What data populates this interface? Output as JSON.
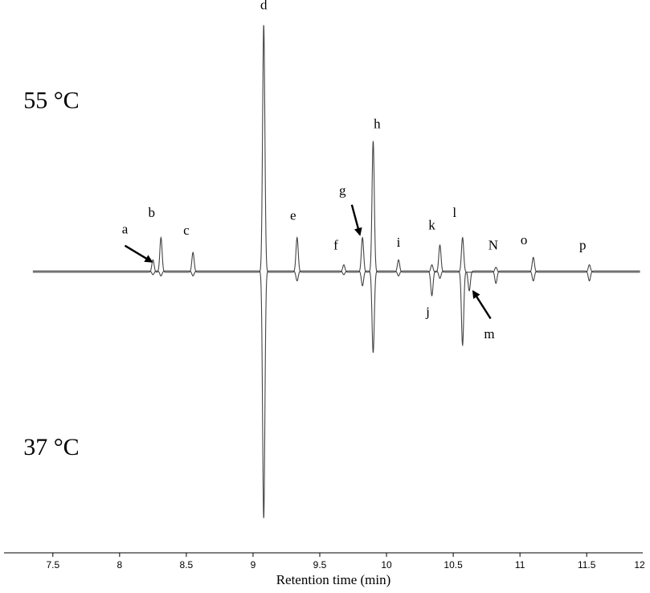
{
  "chart_data": {
    "type": "line",
    "xlabel": "Retention time (min)",
    "xlim": [
      7.3,
      12.0
    ],
    "xticks": [
      "7.5",
      "8",
      "8.5",
      "9",
      "9.5",
      "10",
      "10.5",
      "11",
      "11.5",
      "12"
    ],
    "xtick_values": [
      7.5,
      8,
      8.5,
      9,
      9.5,
      10,
      10.5,
      11,
      11.5,
      12
    ],
    "ylim": [
      -100,
      100
    ],
    "series": [
      {
        "name": "55 °C",
        "peaks": [
          {
            "x": 8.25,
            "h": 5
          },
          {
            "x": 8.31,
            "h": 14
          },
          {
            "x": 8.55,
            "h": 8
          },
          {
            "x": 9.08,
            "h": 100
          },
          {
            "x": 9.33,
            "h": 14
          },
          {
            "x": 9.68,
            "h": 3
          },
          {
            "x": 9.82,
            "h": 14
          },
          {
            "x": 9.9,
            "h": 53
          },
          {
            "x": 10.09,
            "h": 5
          },
          {
            "x": 10.34,
            "h": 3
          },
          {
            "x": 10.4,
            "h": 11
          },
          {
            "x": 10.57,
            "h": 14
          },
          {
            "x": 10.82,
            "h": 2
          },
          {
            "x": 11.1,
            "h": 6
          },
          {
            "x": 11.52,
            "h": 3
          }
        ]
      },
      {
        "name": "37 °C",
        "peaks": [
          {
            "x": 8.25,
            "h": -1.5
          },
          {
            "x": 8.31,
            "h": -2
          },
          {
            "x": 8.55,
            "h": -2
          },
          {
            "x": 9.08,
            "h": -100
          },
          {
            "x": 9.33,
            "h": -4
          },
          {
            "x": 9.68,
            "h": -1.5
          },
          {
            "x": 9.82,
            "h": -6
          },
          {
            "x": 9.9,
            "h": -33
          },
          {
            "x": 10.09,
            "h": -2
          },
          {
            "x": 10.34,
            "h": -10
          },
          {
            "x": 10.4,
            "h": -3
          },
          {
            "x": 10.57,
            "h": -30
          },
          {
            "x": 10.62,
            "h": -8
          },
          {
            "x": 10.82,
            "h": -5
          },
          {
            "x": 11.1,
            "h": -4
          },
          {
            "x": 11.52,
            "h": -4
          }
        ]
      }
    ],
    "peak_labels": [
      {
        "text": "a",
        "x": 8.04,
        "y": 15.5
      },
      {
        "text": "b",
        "x": 8.24,
        "y": 22
      },
      {
        "text": "c",
        "x": 8.5,
        "y": 15
      },
      {
        "text": "d",
        "x": 9.08,
        "y": 106
      },
      {
        "text": "e",
        "x": 9.3,
        "y": 21
      },
      {
        "text": "f",
        "x": 9.62,
        "y": 9
      },
      {
        "text": "g",
        "x": 9.67,
        "y": 31
      },
      {
        "text": "h",
        "x": 9.93,
        "y": 58
      },
      {
        "text": "i",
        "x": 10.09,
        "y": 10
      },
      {
        "text": "j",
        "x": 10.31,
        "y": -18
      },
      {
        "text": "k",
        "x": 10.34,
        "y": 17
      },
      {
        "text": "l",
        "x": 10.51,
        "y": 22
      },
      {
        "text": "m",
        "x": 10.77,
        "y": -27
      },
      {
        "text": "N",
        "x": 10.8,
        "y": 9
      },
      {
        "text": "o",
        "x": 11.03,
        "y": 11
      },
      {
        "text": "p",
        "x": 11.47,
        "y": 9
      }
    ],
    "arrows": [
      {
        "x1": 8.04,
        "y1": 10.5,
        "x2": 8.24,
        "y2": 4
      },
      {
        "x1": 9.74,
        "y1": 27,
        "x2": 9.8,
        "y2": 15
      },
      {
        "x1": 10.78,
        "y1": -19,
        "x2": 10.65,
        "y2": -8
      }
    ],
    "annotations": [
      {
        "text": "55 °C",
        "x": 7.4,
        "y": 66
      },
      {
        "text": "37 °C",
        "x": 7.4,
        "y": -74
      }
    ]
  }
}
